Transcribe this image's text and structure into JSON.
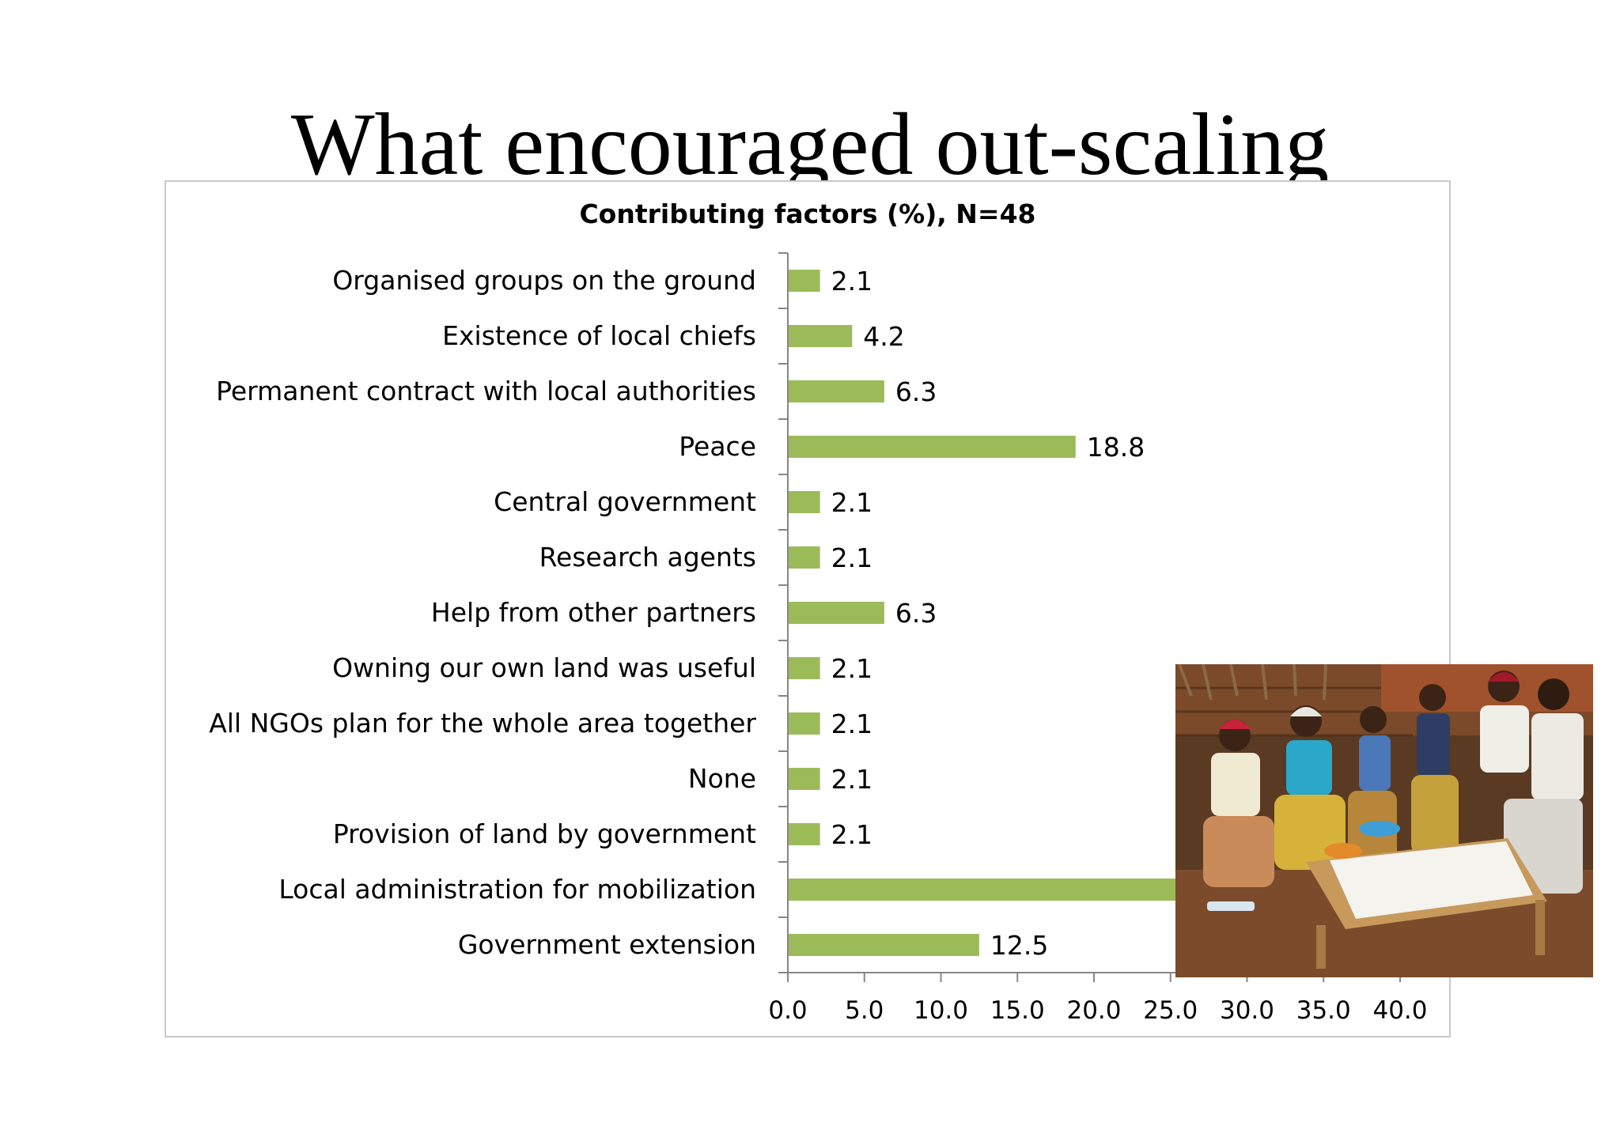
{
  "slide": {
    "title": "What encouraged out-scaling"
  },
  "colors": {
    "bar": "#9bbb59",
    "axis": "#868686"
  },
  "chart_data": {
    "type": "bar",
    "orientation": "horizontal",
    "title": "Contributing factors (%), N=48",
    "xlabel": "",
    "ylabel": "",
    "xlim": [
      0,
      40
    ],
    "x_ticks": [
      "0.0",
      "5.0",
      "10.0",
      "15.0",
      "20.0",
      "25.0",
      "30.0",
      "35.0",
      "40.0"
    ],
    "grid": false,
    "legend": "none",
    "categories": [
      "Organised groups on the ground",
      "Existence of local chiefs",
      "Permanent contract with local authorities",
      "Peace",
      "Central government",
      "Research agents",
      "Help from other partners",
      "Owning our own land was useful",
      "All NGOs plan for the whole area together",
      "None",
      "Provision of land by government",
      "Local administration for mobilization",
      "Government extension"
    ],
    "values": [
      2.1,
      4.2,
      6.3,
      18.8,
      2.1,
      2.1,
      6.3,
      2.1,
      2.1,
      2.1,
      2.1,
      37.5,
      12.5
    ],
    "value_labels": [
      "2.1",
      "4.2",
      "6.3",
      "18.8",
      "2.1",
      "2.1",
      "6.3",
      "2.1",
      "2.1",
      "2.1",
      "2.1",
      "37.5",
      "12.5"
    ]
  }
}
